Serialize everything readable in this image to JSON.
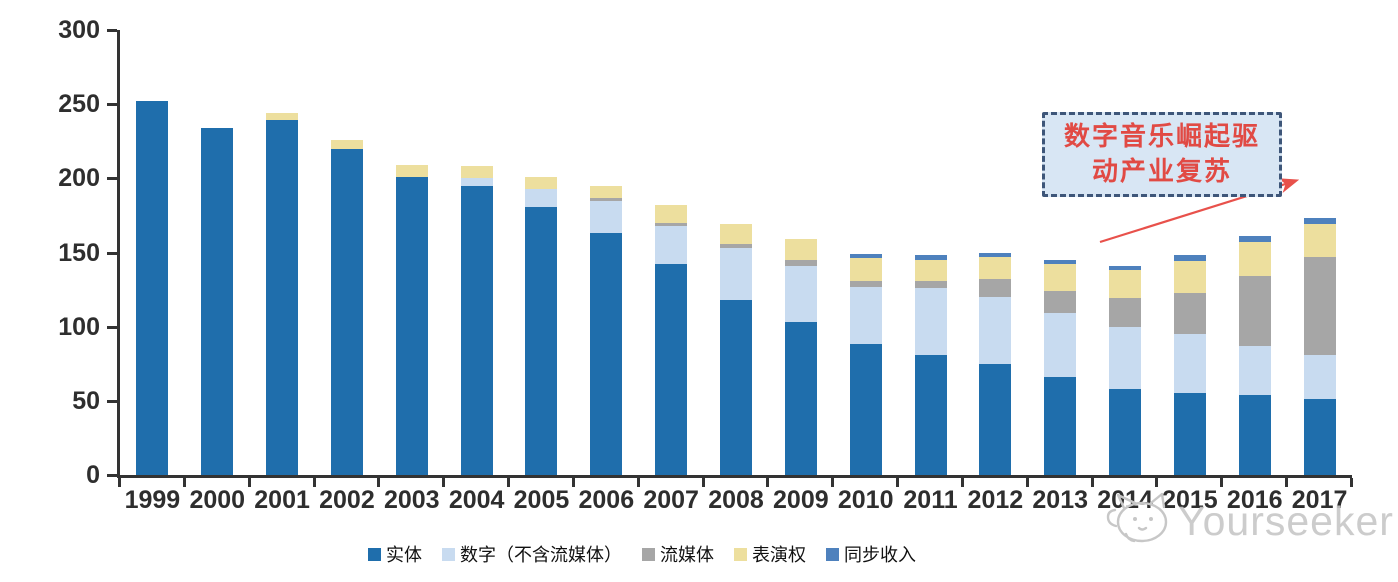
{
  "annotation": {
    "line1": "数字音乐崛起驱",
    "line2": "动产业复苏",
    "box_fill": "#D8E6F4",
    "box_border": "#3E5679",
    "text_color": "#E14A44",
    "arrow_color": "#E8514B"
  },
  "watermark": {
    "brand": "Yourseeker",
    "logo": "cat-logo-icon",
    "color": "#c7c7c7"
  },
  "chart_data": {
    "type": "bar",
    "stacked": true,
    "title": "",
    "xlabel": "",
    "ylabel": "",
    "grid": false,
    "legend_position": "bottom",
    "ylim": [
      0,
      300
    ],
    "ytick_step": 50,
    "categories": [
      "1999",
      "2000",
      "2001",
      "2002",
      "2003",
      "2004",
      "2005",
      "2006",
      "2007",
      "2008",
      "2009",
      "2010",
      "2011",
      "2012",
      "2013",
      "2014",
      "2015",
      "2016",
      "2017"
    ],
    "series": [
      {
        "key": "physical",
        "name": "实体",
        "color": "#1F6EAC",
        "values": [
          252,
          234,
          239,
          220,
          201,
          195,
          181,
          163,
          142,
          118,
          103,
          88,
          81,
          75,
          66,
          58,
          55,
          54,
          51
        ]
      },
      {
        "key": "digital-excl-streaming",
        "name": "数字（不含流媒体）",
        "color": "#C8DBF0",
        "values": [
          0,
          0,
          0,
          0,
          0,
          5,
          12,
          22,
          26,
          35,
          38,
          39,
          45,
          45,
          43,
          42,
          40,
          33,
          30
        ]
      },
      {
        "key": "streaming",
        "name": "流媒体",
        "color": "#A6A6A6",
        "values": [
          0,
          0,
          0,
          0,
          0,
          0,
          0,
          2,
          2,
          3,
          4,
          4,
          5,
          12,
          15,
          19,
          28,
          47,
          66
        ]
      },
      {
        "key": "performance-rights",
        "name": "表演权",
        "color": "#EDDF9E",
        "values": [
          0,
          0,
          5,
          6,
          8,
          8,
          8,
          8,
          12,
          13,
          14,
          15,
          14,
          15,
          18,
          19,
          21,
          23,
          22
        ]
      },
      {
        "key": "sync-revenue",
        "name": "同步收入",
        "color": "#4E81BD",
        "values": [
          0,
          0,
          0,
          0,
          0,
          0,
          0,
          0,
          0,
          0,
          0,
          3,
          3,
          3,
          3,
          3,
          4,
          4,
          4
        ]
      }
    ]
  }
}
